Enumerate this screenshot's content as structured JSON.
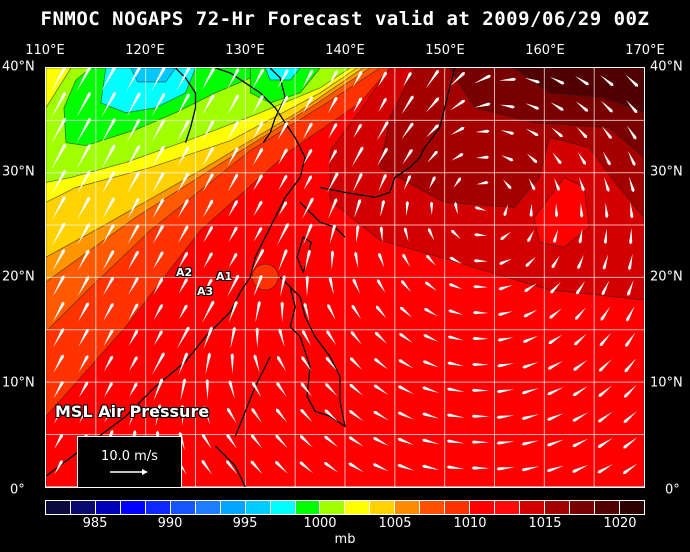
{
  "title": "FNMOC NOGAPS 72-Hr Forecast valid at 2009/06/29 00Z",
  "lon_labels": [
    "110°E",
    "120°E",
    "130°E",
    "140°E",
    "150°E",
    "160°E",
    "170°E"
  ],
  "lat_labels": [
    "40°N",
    "30°N",
    "20°N",
    "10°N",
    "0°"
  ],
  "field_label": "MSL Air Pressure",
  "markers": [
    "A1",
    "A2",
    "A3"
  ],
  "wind_scale": {
    "label": "10.0 m/s"
  },
  "colorbar": {
    "unit": "mb",
    "tick_labels": [
      "985",
      "990",
      "995",
      "1000",
      "1005",
      "1010",
      "1015",
      "1020"
    ],
    "colors": [
      "#0a0a3c",
      "#0a0a6e",
      "#0000b4",
      "#0000ff",
      "#0a28ff",
      "#1455ff",
      "#1e7dff",
      "#00a5ff",
      "#00cdff",
      "#00ffff",
      "#00ff00",
      "#a0ff00",
      "#ffff00",
      "#ffd200",
      "#ff8c00",
      "#ff5000",
      "#ff3200",
      "#ff0000",
      "#ff0a0a",
      "#d20000",
      "#a50000",
      "#780000",
      "#500000",
      "#2d0000"
    ]
  }
}
